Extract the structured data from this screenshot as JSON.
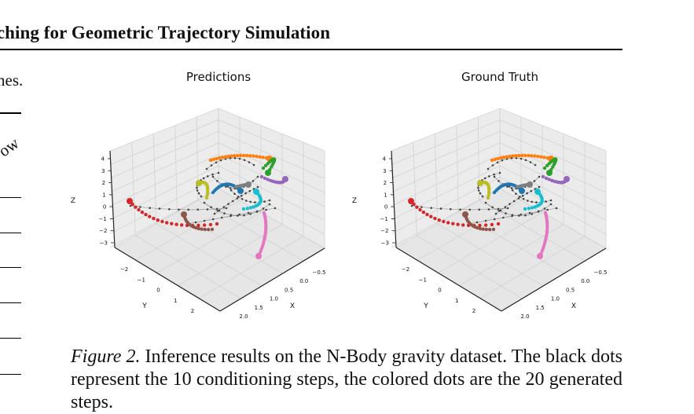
{
  "header": {
    "running_title": "tching for Geometric Trajectory Simulation"
  },
  "left_column": {
    "fragment_1": "nes.",
    "fragment_2": "ow"
  },
  "figure": {
    "panels": [
      {
        "title": "Predictions",
        "axes": {
          "x_label": "X",
          "y_label": "Y",
          "z_label": "Z",
          "x_ticks": [
            "−0.5",
            "0.0",
            "0.5",
            "1.0",
            "1.5",
            "2.0"
          ],
          "y_ticks": [
            "−2",
            "−1",
            "0",
            "1",
            "2"
          ],
          "z_ticks": [
            "4",
            "3",
            "2",
            "1",
            "0",
            "−1",
            "−2",
            "−3"
          ]
        }
      },
      {
        "title": "Ground Truth",
        "axes": {
          "x_label": "X",
          "y_label": "Y",
          "z_label": "Z",
          "x_ticks": [
            "−0.5",
            "0.0",
            "0.5",
            "1.0",
            "1.5",
            "2.0"
          ],
          "y_ticks": [
            "−2",
            "−1",
            "0",
            "1",
            "2"
          ],
          "z_ticks": [
            "4",
            "3",
            "2",
            "1",
            "0",
            "−1",
            "−2",
            "−3"
          ]
        }
      }
    ],
    "colors": {
      "conditioning": "#444444",
      "red": "#d62728",
      "brown": "#8c564b",
      "orange": "#ff7f0e",
      "green": "#2ca02c",
      "purple": "#9467bd",
      "blue": "#1f77b4",
      "olive": "#bcbd22",
      "gray": "#7f7f7f",
      "cyan": "#17becf",
      "pink": "#e377c2"
    }
  },
  "caption": {
    "label": "Figure 2.",
    "text": " Inference results on the N-Body gravity dataset. The black dots represent the 10 conditioning steps, the colored dots are the 20 generated steps."
  }
}
